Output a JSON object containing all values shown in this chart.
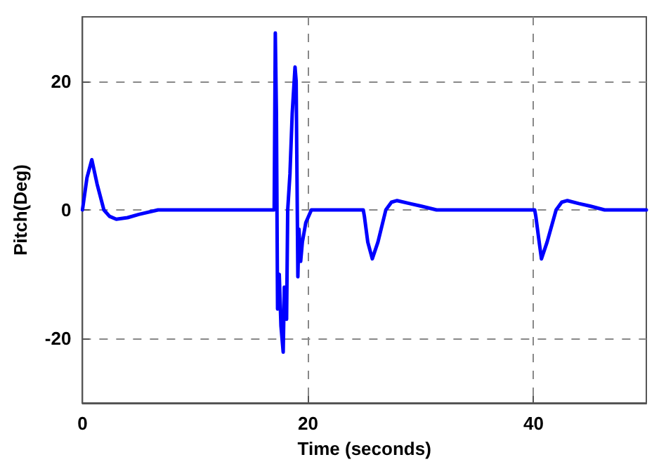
{
  "chart_data": {
    "type": "line",
    "xlabel": "Time (seconds)",
    "ylabel": "Pitch(Deg)",
    "x": [
      0,
      0.4,
      0.83,
      1.3,
      1.9,
      2.4,
      3.0,
      4.0,
      5.0,
      6.7,
      10,
      14,
      17.0,
      17.1,
      17.2,
      17.3,
      17.45,
      17.6,
      17.8,
      17.9,
      18.0,
      18.1,
      18.2,
      18.4,
      18.6,
      18.85,
      18.95,
      19.1,
      19.2,
      19.35,
      19.5,
      19.8,
      20.3,
      22,
      24.9,
      25.0,
      25.3,
      25.7,
      26.2,
      26.9,
      27.4,
      27.9,
      29,
      30,
      31.4,
      35,
      40.1,
      40.2,
      40.5,
      40.7,
      41.2,
      42.0,
      42.5,
      43.0,
      44,
      45,
      46.3,
      50
    ],
    "series": [
      {
        "color": "#0000ff",
        "values": [
          0,
          5,
          7.8,
          4,
          0,
          -1,
          -1.45,
          -1.2,
          -0.7,
          0,
          0,
          0,
          0,
          27.5,
          15,
          -15.4,
          -10,
          -18,
          -22.1,
          -12,
          -15,
          -17,
          0,
          5.6,
          15,
          22.2,
          20,
          -10.4,
          -3,
          -8,
          -5,
          -2,
          0,
          0,
          0,
          -1,
          -5,
          -7.6,
          -5,
          0,
          1.2,
          1.45,
          1,
          0.6,
          0,
          0,
          0,
          -1,
          -5,
          -7.6,
          -5,
          0,
          1.2,
          1.45,
          1,
          0.6,
          0,
          0
        ]
      }
    ],
    "xlim": [
      0,
      50
    ],
    "xticks": [
      0,
      20,
      40
    ],
    "ylim": [
      -30,
      30
    ],
    "yticks": [
      -20,
      0,
      20
    ],
    "grid": true,
    "line_style": "solid",
    "marker": "none"
  }
}
